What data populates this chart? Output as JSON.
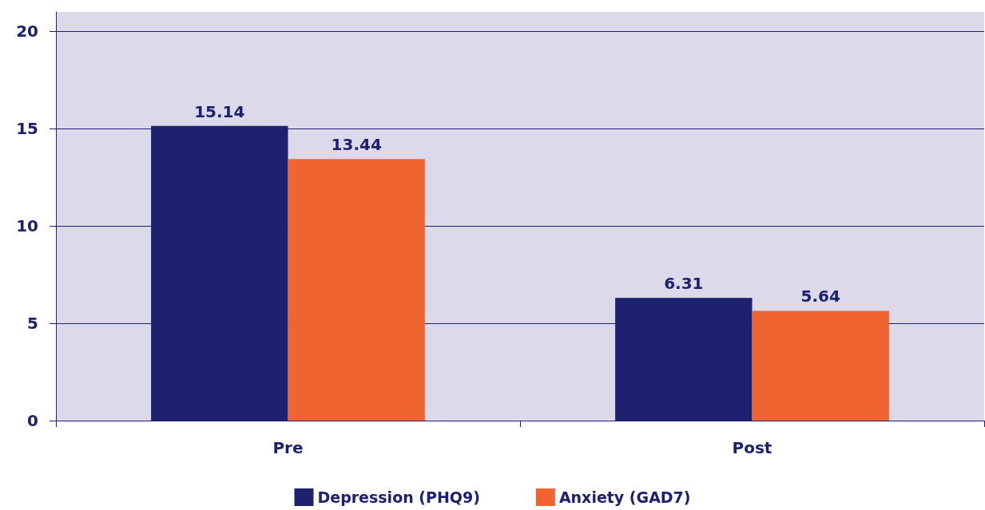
{
  "chart_data": {
    "type": "bar",
    "categories": [
      "Pre",
      "Post"
    ],
    "series": [
      {
        "name": "Depression (PHQ9)",
        "color": "#1e2070",
        "values": [
          15.14,
          6.31
        ]
      },
      {
        "name": "Anxiety (GAD7)",
        "color": "#f06432",
        "values": [
          13.44,
          5.64
        ]
      }
    ],
    "ylim": [
      0,
      21
    ],
    "yticks": [
      0,
      5,
      10,
      15,
      20
    ],
    "grid": "y",
    "legend": "bottom",
    "data_labels": true
  }
}
